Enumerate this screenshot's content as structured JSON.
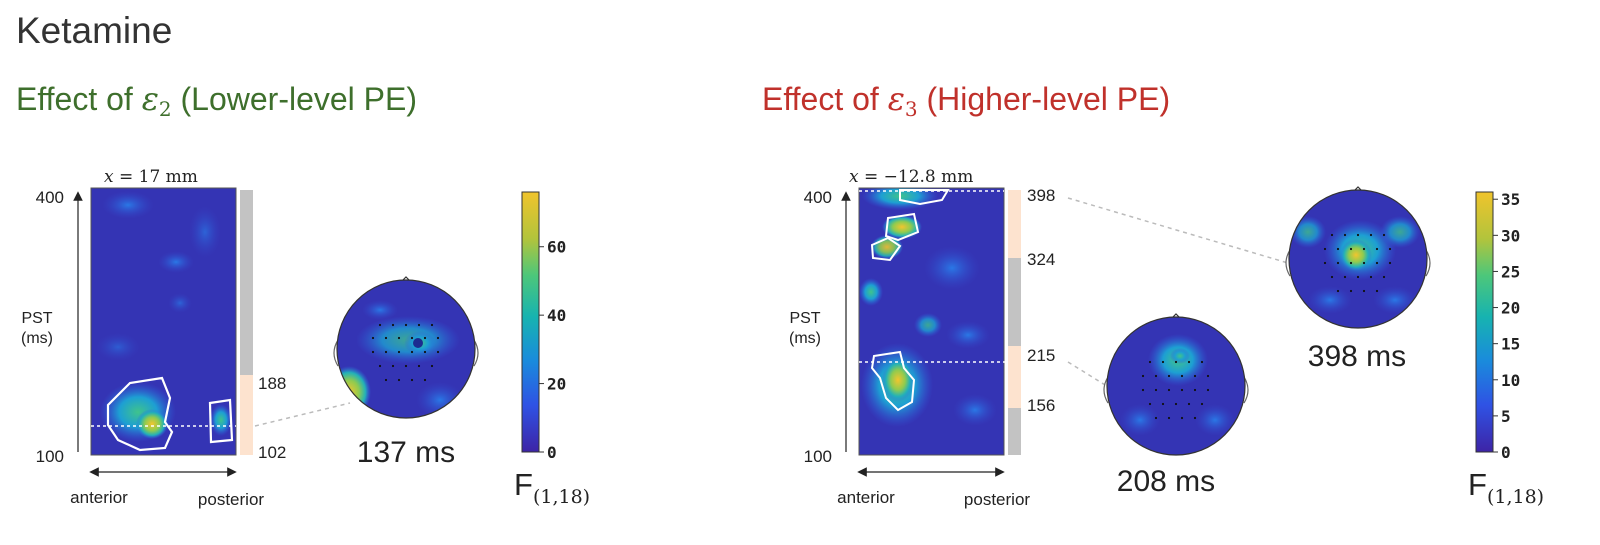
{
  "slide": {
    "title": "Ketamine",
    "colors": {
      "title": "#333333",
      "left_heading": "#3e6f2c",
      "right_heading": "#c0312b",
      "map_background": "#3434b4",
      "significance_bar": "#c3c3c3",
      "significance_window": "#fde3cf"
    }
  },
  "left_panel": {
    "heading_prefix": "Effect of",
    "heading_symbol": "ε",
    "heading_subscript": "2",
    "heading_suffix": "(Lower-level PE)",
    "coord_var": "x",
    "coord_value": "= 17 mm",
    "y_top": "400",
    "y_bottom": "100",
    "y_label_line1": "PST",
    "y_label_line2": "(ms)",
    "x_label_left": "anterior",
    "x_label_right": "posterior",
    "window_top": "188",
    "window_bottom": "102",
    "topomaps": [
      {
        "label": "137 ms"
      }
    ],
    "colorbar": {
      "ticks": [
        "60",
        "40",
        "20",
        "0"
      ],
      "label": "F",
      "label_sub": "(1,18)",
      "max": 76
    }
  },
  "right_panel": {
    "heading_prefix": "Effect of",
    "heading_symbol": "ε",
    "heading_subscript": "3",
    "heading_suffix": "(Higher-level PE)",
    "coord_var": "x",
    "coord_value": "= −12.8 mm",
    "y_top": "400",
    "y_bottom": "100",
    "y_label_line1": "PST",
    "y_label_line2": "(ms)",
    "x_label_left": "anterior",
    "x_label_right": "posterior",
    "window_labels": [
      "398",
      "324",
      "215",
      "156"
    ],
    "topomaps": [
      {
        "label": "208 ms"
      },
      {
        "label": "398 ms"
      }
    ],
    "colorbar": {
      "ticks": [
        "35",
        "30",
        "25",
        "20",
        "15",
        "10",
        "5",
        "0"
      ],
      "label": "F",
      "label_sub": "(1,18)",
      "max": 36
    }
  }
}
